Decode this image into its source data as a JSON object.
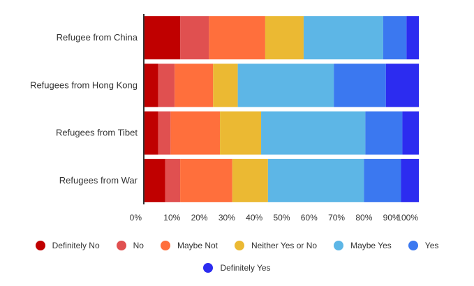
{
  "chart_data": {
    "type": "bar",
    "orientation": "horizontal",
    "stacked": true,
    "normalized": true,
    "title": "",
    "xlabel": "",
    "ylabel": "",
    "xlim": [
      0,
      100
    ],
    "x_ticks": [
      "0%",
      "10%",
      "20%",
      "30%",
      "40%",
      "50%",
      "60%",
      "70%",
      "80%",
      "90%",
      "100%"
    ],
    "categories": [
      "Refugee from China",
      "Refugees from Hong Kong",
      "Refugees from Tibet",
      "Refugees from War"
    ],
    "series": [
      {
        "name": "Definitely No",
        "color": "#c00000",
        "values": [
          13,
          5,
          5,
          7.5
        ]
      },
      {
        "name": "No",
        "color": "#e05050",
        "values": [
          10.5,
          6,
          4.5,
          5.5
        ]
      },
      {
        "name": "Maybe Not",
        "color": "#ff6f3c",
        "values": [
          20.5,
          14,
          18,
          19
        ]
      },
      {
        "name": "Neither Yes or No",
        "color": "#ebb933",
        "values": [
          14,
          9,
          15,
          13
        ]
      },
      {
        "name": "Maybe Yes",
        "color": "#5db6e6",
        "values": [
          29,
          35,
          38,
          35
        ]
      },
      {
        "name": "Yes",
        "color": "#3b78f0",
        "values": [
          8.5,
          19,
          13.5,
          13.5
        ]
      },
      {
        "name": "Definitely Yes",
        "color": "#2c2cf0",
        "values": [
          4.5,
          12,
          6,
          6.5
        ]
      }
    ],
    "legend_position": "bottom",
    "grid": false
  }
}
